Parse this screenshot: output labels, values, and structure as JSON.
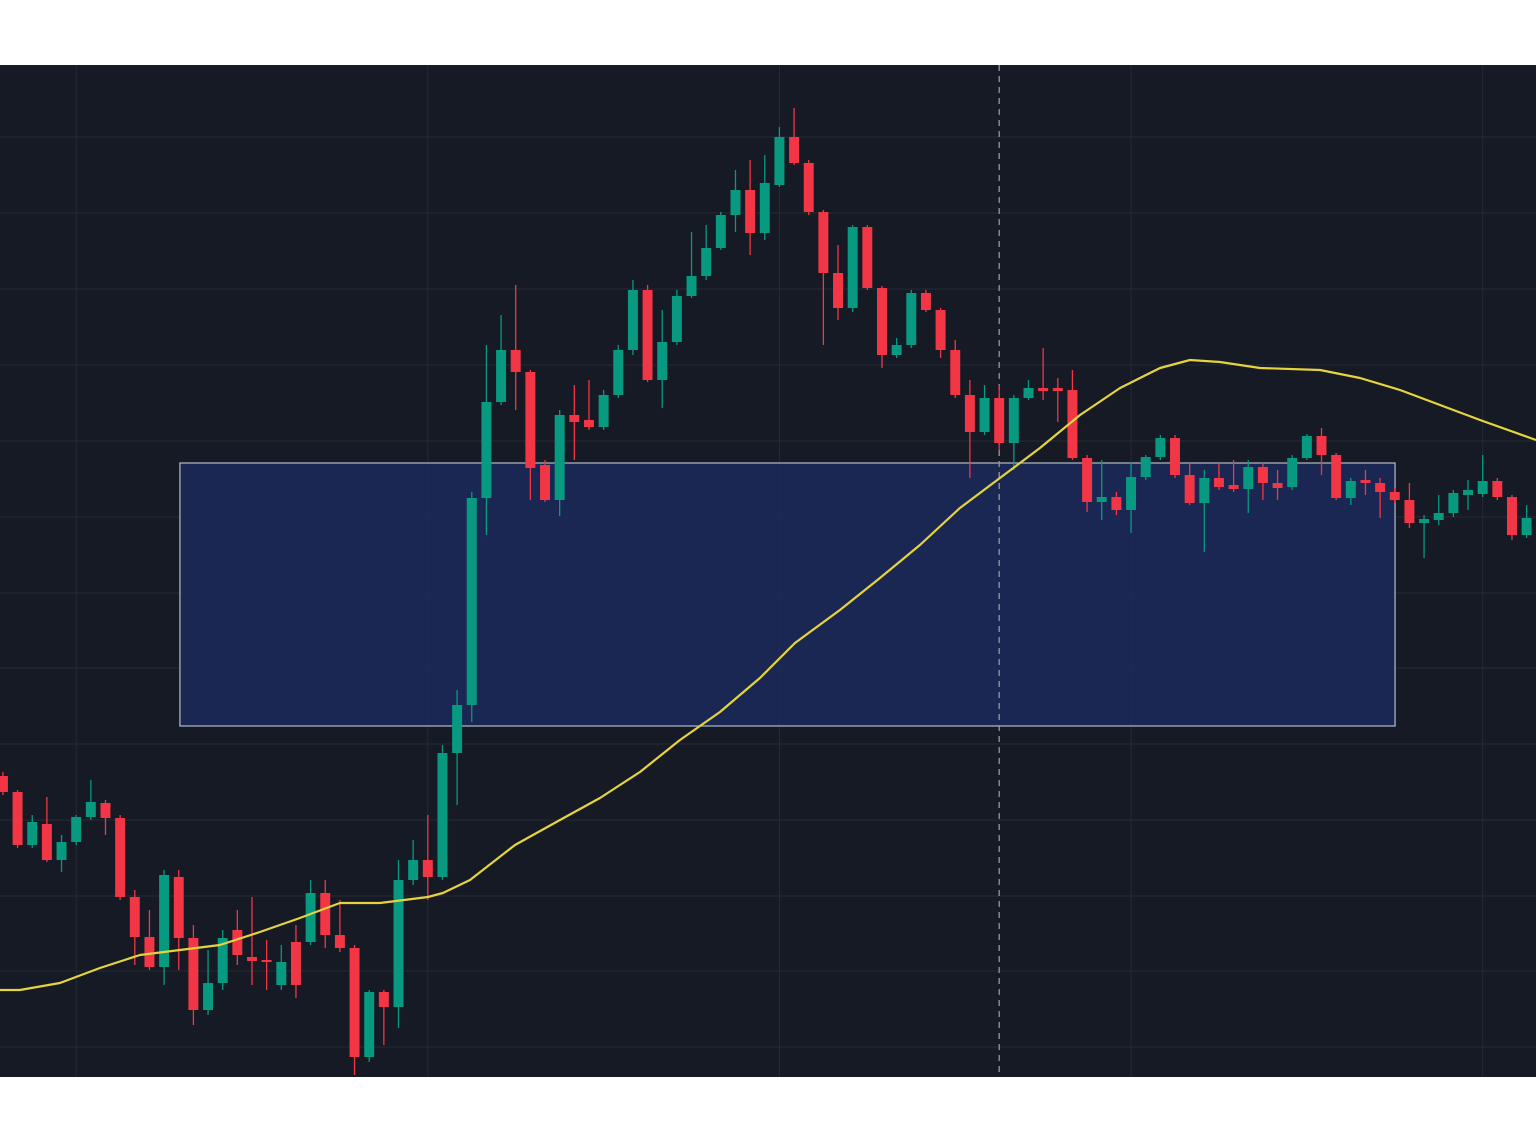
{
  "chart_data": {
    "type": "candlestick",
    "categories": [
      null,
      null,
      null,
      null,
      null,
      null,
      null,
      null,
      null,
      null,
      null,
      null,
      null,
      null,
      null,
      null,
      null,
      null,
      null,
      null,
      null,
      null,
      null,
      null,
      null,
      null,
      null,
      null,
      null,
      null,
      null,
      null,
      null,
      null,
      null,
      null,
      null,
      null,
      null,
      null,
      null,
      null,
      null,
      null,
      null,
      null,
      null,
      null,
      null,
      null,
      null,
      null,
      null,
      null,
      null,
      null,
      null,
      null,
      null,
      null,
      null,
      null,
      null,
      null,
      null,
      null,
      null,
      null,
      null,
      null,
      null,
      null,
      null,
      null,
      null,
      null,
      null,
      null,
      null,
      null,
      null,
      null,
      null,
      null,
      null,
      null,
      null,
      null,
      null,
      null,
      null,
      null,
      null,
      null,
      null,
      null,
      null,
      null,
      null,
      null,
      null,
      null,
      null,
      null,
      null
    ],
    "open": [
      301,
      285,
      232,
      253,
      217,
      235,
      260,
      274,
      259,
      180,
      140,
      110,
      200,
      139,
      67,
      94,
      147,
      120,
      117,
      92,
      135,
      135,
      184,
      142,
      129,
      20,
      85,
      70,
      197,
      217,
      200,
      324,
      372,
      579,
      675,
      727,
      705,
      612,
      577,
      662,
      657,
      650,
      682,
      727,
      787,
      697,
      735,
      781,
      801,
      829,
      862,
      887,
      844,
      892,
      940,
      914,
      865,
      804,
      769,
      850,
      789,
      722,
      732,
      784,
      767,
      727,
      682,
      645,
      679,
      634,
      679,
      689,
      689,
      687,
      619,
      575,
      580,
      567,
      600,
      620,
      639,
      602,
      574,
      599,
      592,
      588,
      610,
      594,
      590,
      619,
      641,
      622,
      579,
      597,
      594,
      585,
      577,
      554,
      557,
      564,
      582,
      583,
      596,
      580,
      542
    ],
    "high": [
      305,
      287,
      262,
      280,
      242,
      262,
      297,
      277,
      262,
      187,
      167,
      207,
      207,
      152,
      127,
      147,
      167,
      180,
      137,
      132,
      152,
      197,
      197,
      177,
      132,
      87,
      87,
      217,
      237,
      262,
      332,
      387,
      585,
      732,
      762,
      792,
      707,
      617,
      667,
      692,
      697,
      687,
      732,
      797,
      792,
      767,
      787,
      845,
      852,
      865,
      907,
      917,
      922,
      950,
      969,
      917,
      867,
      832,
      852,
      852,
      791,
      739,
      787,
      787,
      769,
      737,
      697,
      692,
      692,
      682,
      697,
      729,
      699,
      707,
      622,
      617,
      585,
      615,
      622,
      642,
      642,
      614,
      607,
      614,
      617,
      617,
      614,
      607,
      622,
      643,
      649,
      624,
      599,
      607,
      599,
      589,
      594,
      562,
      582,
      587,
      597,
      622,
      599,
      582,
      572
    ],
    "low": [
      282,
      229,
      229,
      215,
      205,
      232,
      257,
      242,
      177,
      112,
      107,
      92,
      107,
      52,
      62,
      87,
      112,
      92,
      87,
      87,
      79,
      132,
      129,
      125,
      2,
      15,
      32,
      49,
      192,
      177,
      197,
      272,
      355,
      542,
      672,
      667,
      577,
      575,
      561,
      617,
      647,
      647,
      679,
      722,
      695,
      669,
      732,
      779,
      797,
      827,
      845,
      822,
      837,
      890,
      912,
      862,
      732,
      757,
      765,
      787,
      709,
      719,
      729,
      765,
      719,
      679,
      599,
      642,
      627,
      607,
      677,
      677,
      655,
      617,
      565,
      557,
      562,
      544,
      597,
      617,
      599,
      572,
      525,
      587,
      585,
      564,
      577,
      577,
      587,
      617,
      602,
      577,
      572,
      582,
      559,
      574,
      549,
      519,
      552,
      560,
      567,
      580,
      577,
      537,
      539
    ],
    "close": [
      285,
      232,
      255,
      217,
      235,
      260,
      275,
      259,
      180,
      140,
      110,
      202,
      139,
      67,
      94,
      139,
      122,
      116,
      115,
      115,
      92,
      184,
      142,
      129,
      20,
      85,
      70,
      197,
      217,
      200,
      324,
      372,
      579,
      675,
      727,
      705,
      609,
      577,
      662,
      655,
      650,
      682,
      727,
      787,
      697,
      735,
      781,
      801,
      829,
      862,
      887,
      844,
      894,
      940,
      914,
      865,
      804,
      769,
      850,
      789,
      722,
      732,
      784,
      767,
      727,
      682,
      645,
      679,
      634,
      679,
      689,
      686,
      686,
      619,
      575,
      580,
      567,
      600,
      620,
      639,
      602,
      574,
      599,
      590,
      588,
      610,
      594,
      589,
      619,
      641,
      622,
      579,
      596,
      594,
      585,
      577,
      554,
      558,
      564,
      584,
      587,
      596,
      580,
      542,
      559
    ],
    "up_color": "#089981",
    "down_color": "#f23645",
    "ma": {
      "color": "#e5d43c",
      "x": [
        -0.2,
        1.16,
        3.89,
        6.62,
        9.35,
        12.08,
        14.81,
        17.54,
        20.27,
        23.0,
        25.73,
        29.01,
        30.03,
        31.88,
        34.95,
        38.02,
        40.75,
        43.48,
        46.21,
        48.94,
        51.67,
        54.06,
        57.13,
        59.86,
        62.59,
        65.32,
        68.05,
        70.78,
        73.52,
        76.25,
        78.98,
        81.02,
        83.07,
        85.8,
        89.9,
        92.63,
        95.36,
        98.09,
        100.82,
        104.64
      ],
      "values": [
        87,
        87,
        94,
        109,
        122,
        127,
        132,
        145,
        159,
        174,
        174,
        180,
        184,
        197,
        232,
        257,
        279,
        305,
        337,
        365,
        399,
        434,
        467,
        499,
        532,
        569,
        599,
        629,
        662,
        689,
        709,
        717,
        715,
        709,
        707,
        699,
        687,
        672,
        657,
        637
      ]
    },
    "zone": {
      "x_range": [
        12.08,
        95.02
      ],
      "y_range": [
        351,
        614
      ],
      "color": "#1c2a5c",
      "border_color": "#b4bccb"
    },
    "crosshair_x": 68,
    "xlim": [
      -0.2,
      104.64
    ],
    "xticks": [
      5,
      29,
      53,
      77,
      101
    ],
    "ylim": [
      0,
      1012
    ],
    "yticks": [
      30,
      106,
      181,
      257,
      333,
      409,
      484,
      560,
      636,
      712,
      788,
      864,
      940
    ],
    "grid": true,
    "background": "#161a25",
    "grid_color": "#262a35"
  }
}
